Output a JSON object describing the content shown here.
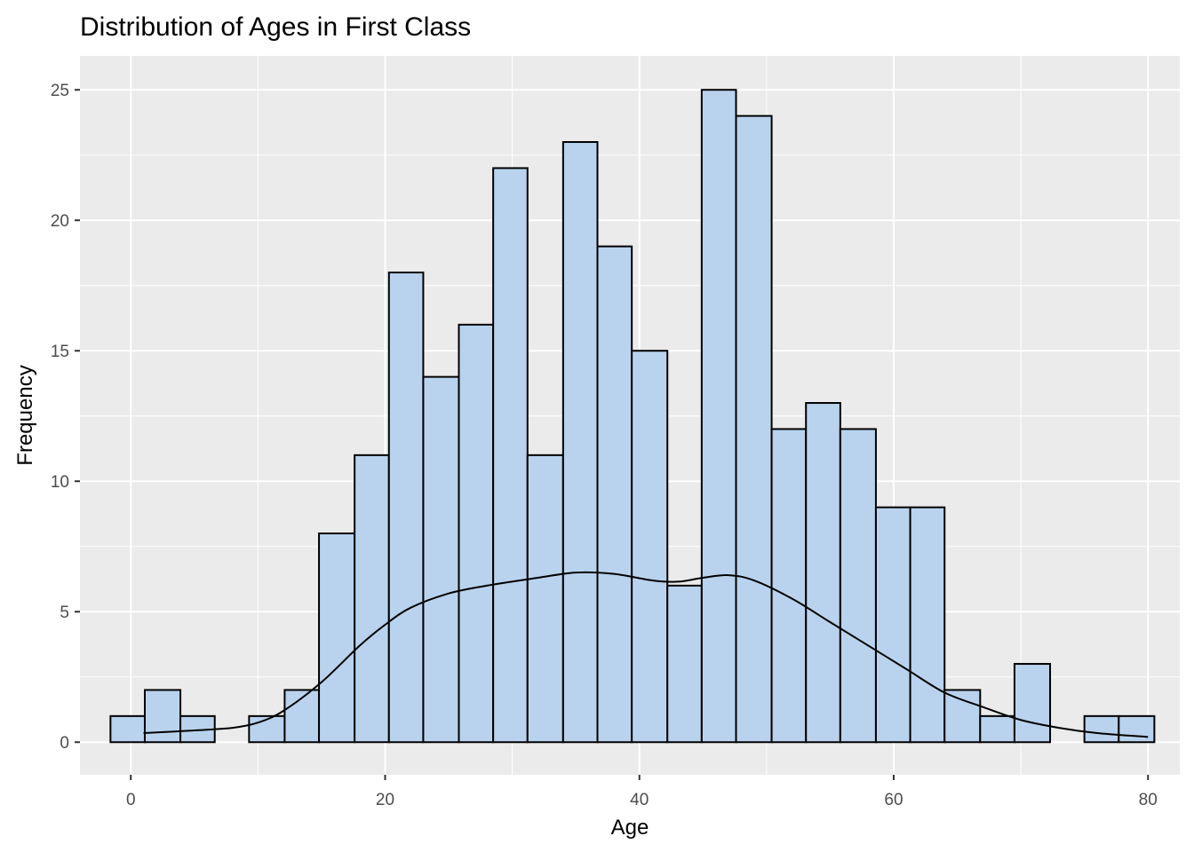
{
  "colors": {
    "panel_background": "#EBEBEB",
    "grid": "#FFFFFF",
    "bar_fill": "#B9D3EE",
    "bar_outline": "#000000",
    "density_line": "#000000",
    "tick_text": "#4D4D4D"
  },
  "chart_data": {
    "type": "bar",
    "title": "Distribution of Ages in First Class",
    "xlabel": "Age",
    "ylabel": "Frequency",
    "xlim": [
      -4.0,
      82.5
    ],
    "ylim": [
      -1.25,
      26.3
    ],
    "x_ticks": [
      0,
      20,
      40,
      60,
      80
    ],
    "y_ticks": [
      0,
      5,
      10,
      15,
      20,
      25
    ],
    "grid": true,
    "legend": "none",
    "bins": [
      {
        "start": -1.6,
        "end": 1.1,
        "count": 1
      },
      {
        "start": 1.1,
        "end": 3.9,
        "count": 2
      },
      {
        "start": 3.9,
        "end": 6.6,
        "count": 1
      },
      {
        "start": 6.6,
        "end": 9.3,
        "count": 0
      },
      {
        "start": 9.3,
        "end": 12.1,
        "count": 1
      },
      {
        "start": 12.1,
        "end": 14.8,
        "count": 2
      },
      {
        "start": 14.8,
        "end": 17.6,
        "count": 8
      },
      {
        "start": 17.6,
        "end": 20.3,
        "count": 11
      },
      {
        "start": 20.3,
        "end": 23.0,
        "count": 18
      },
      {
        "start": 23.0,
        "end": 25.8,
        "count": 14
      },
      {
        "start": 25.8,
        "end": 28.5,
        "count": 16
      },
      {
        "start": 28.5,
        "end": 31.2,
        "count": 22
      },
      {
        "start": 31.2,
        "end": 34.0,
        "count": 11
      },
      {
        "start": 34.0,
        "end": 36.7,
        "count": 23
      },
      {
        "start": 36.7,
        "end": 39.4,
        "count": 19
      },
      {
        "start": 39.4,
        "end": 42.2,
        "count": 15
      },
      {
        "start": 42.2,
        "end": 44.9,
        "count": 6
      },
      {
        "start": 44.9,
        "end": 47.6,
        "count": 25
      },
      {
        "start": 47.6,
        "end": 50.4,
        "count": 24
      },
      {
        "start": 50.4,
        "end": 53.1,
        "count": 12
      },
      {
        "start": 53.1,
        "end": 55.8,
        "count": 13
      },
      {
        "start": 55.8,
        "end": 58.6,
        "count": 12
      },
      {
        "start": 58.6,
        "end": 61.3,
        "count": 9
      },
      {
        "start": 61.3,
        "end": 64.0,
        "count": 9
      },
      {
        "start": 64.0,
        "end": 66.8,
        "count": 2
      },
      {
        "start": 66.8,
        "end": 69.5,
        "count": 1
      },
      {
        "start": 69.5,
        "end": 72.3,
        "count": 3
      },
      {
        "start": 72.3,
        "end": 75.0,
        "count": 0
      },
      {
        "start": 75.0,
        "end": 77.7,
        "count": 1
      },
      {
        "start": 77.7,
        "end": 80.5,
        "count": 1
      }
    ],
    "density_curve": {
      "x": [
        1,
        5,
        8,
        10,
        12,
        15,
        18,
        20,
        22,
        25,
        28,
        32,
        35,
        38,
        41,
        43,
        45,
        47,
        49,
        52,
        55,
        58,
        61,
        64,
        67,
        70,
        73,
        76,
        80
      ],
      "y": [
        0.35,
        0.45,
        0.55,
        0.75,
        1.2,
        2.3,
        3.7,
        4.5,
        5.15,
        5.7,
        6.0,
        6.3,
        6.5,
        6.45,
        6.2,
        6.15,
        6.3,
        6.4,
        6.2,
        5.5,
        4.6,
        3.7,
        2.8,
        1.9,
        1.35,
        0.85,
        0.55,
        0.35,
        0.2
      ]
    }
  }
}
